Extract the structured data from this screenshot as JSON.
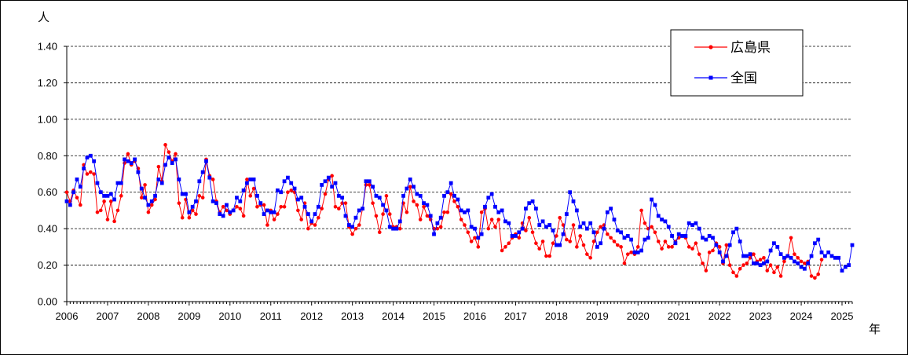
{
  "chart_data": {
    "type": "line",
    "y_unit_label": "人",
    "x_unit_label": "年",
    "ylim": [
      0,
      1.4
    ],
    "y_ticks": [
      "0.00",
      "0.20",
      "0.40",
      "0.60",
      "0.80",
      "1.00",
      "1.20",
      "1.40"
    ],
    "x_ticks": [
      "2006",
      "2007",
      "2008",
      "2009",
      "2010",
      "2011",
      "2012",
      "2013",
      "2014",
      "2015",
      "2016",
      "2017",
      "2018",
      "2019",
      "2020",
      "2021",
      "2022",
      "2023",
      "2024",
      "2025"
    ],
    "x_start": "2006-01",
    "x_end": "2025-04",
    "grid": "horizontal dashed",
    "legend_position": "top-right",
    "series": [
      {
        "name": "広島県",
        "color": "#ff0000",
        "marker": "circle",
        "values": [
          0.6,
          0.55,
          0.61,
          0.57,
          0.53,
          0.75,
          0.7,
          0.71,
          0.7,
          0.49,
          0.5,
          0.55,
          0.45,
          0.55,
          0.44,
          0.5,
          0.58,
          0.76,
          0.81,
          0.75,
          0.77,
          0.73,
          0.57,
          0.64,
          0.49,
          0.53,
          0.56,
          0.74,
          0.66,
          0.86,
          0.82,
          0.77,
          0.81,
          0.54,
          0.46,
          0.56,
          0.46,
          0.5,
          0.48,
          0.58,
          0.57,
          0.78,
          0.69,
          0.67,
          0.55,
          0.49,
          0.52,
          0.5,
          0.48,
          0.5,
          0.52,
          0.51,
          0.47,
          0.67,
          0.58,
          0.62,
          0.52,
          0.53,
          0.53,
          0.42,
          0.5,
          0.45,
          0.48,
          0.52,
          0.52,
          0.6,
          0.61,
          0.6,
          0.5,
          0.45,
          0.54,
          0.4,
          0.43,
          0.42,
          0.46,
          0.51,
          0.59,
          0.67,
          0.69,
          0.52,
          0.51,
          0.54,
          0.54,
          0.41,
          0.37,
          0.4,
          0.42,
          0.51,
          0.64,
          0.64,
          0.54,
          0.47,
          0.38,
          0.48,
          0.58,
          0.48,
          0.41,
          0.41,
          0.4,
          0.54,
          0.49,
          0.63,
          0.55,
          0.53,
          0.45,
          0.52,
          0.47,
          0.45,
          0.4,
          0.4,
          0.41,
          0.49,
          0.49,
          0.59,
          0.55,
          0.52,
          0.45,
          0.42,
          0.38,
          0.33,
          0.35,
          0.3,
          0.49,
          0.51,
          0.4,
          0.45,
          0.41,
          0.45,
          0.28,
          0.3,
          0.32,
          0.35,
          0.37,
          0.35,
          0.43,
          0.39,
          0.46,
          0.38,
          0.32,
          0.29,
          0.33,
          0.25,
          0.25,
          0.32,
          0.36,
          0.46,
          0.42,
          0.34,
          0.33,
          0.42,
          0.3,
          0.36,
          0.31,
          0.26,
          0.24,
          0.33,
          0.38,
          0.41,
          0.42,
          0.37,
          0.35,
          0.33,
          0.31,
          0.3,
          0.21,
          0.26,
          0.27,
          0.26,
          0.3,
          0.5,
          0.43,
          0.4,
          0.41,
          0.38,
          0.33,
          0.29,
          0.33,
          0.3,
          0.3,
          0.33,
          0.35,
          0.36,
          0.35,
          0.3,
          0.29,
          0.32,
          0.26,
          0.21,
          0.17,
          0.27,
          0.28,
          0.32,
          0.3,
          0.21,
          0.31,
          0.2,
          0.16,
          0.14,
          0.18,
          0.2,
          0.21,
          0.24,
          0.26,
          0.22,
          0.23,
          0.24,
          0.17,
          0.2,
          0.16,
          0.19,
          0.14,
          0.22,
          0.25,
          0.35,
          0.26,
          0.24,
          0.22,
          0.21,
          0.22,
          0.14,
          0.13,
          0.15,
          0.23
        ]
      },
      {
        "name": "全国",
        "color": "#0000ff",
        "marker": "square",
        "values": [
          0.55,
          0.53,
          0.6,
          0.67,
          0.63,
          0.73,
          0.79,
          0.8,
          0.77,
          0.65,
          0.6,
          0.58,
          0.58,
          0.59,
          0.56,
          0.65,
          0.65,
          0.78,
          0.77,
          0.76,
          0.78,
          0.71,
          0.62,
          0.57,
          0.53,
          0.55,
          0.58,
          0.67,
          0.65,
          0.75,
          0.79,
          0.76,
          0.78,
          0.67,
          0.59,
          0.59,
          0.49,
          0.52,
          0.55,
          0.66,
          0.71,
          0.77,
          0.68,
          0.55,
          0.54,
          0.48,
          0.47,
          0.53,
          0.49,
          0.5,
          0.57,
          0.55,
          0.61,
          0.65,
          0.67,
          0.67,
          0.58,
          0.54,
          0.48,
          0.5,
          0.49,
          0.49,
          0.61,
          0.6,
          0.66,
          0.68,
          0.65,
          0.62,
          0.56,
          0.57,
          0.52,
          0.48,
          0.44,
          0.48,
          0.52,
          0.64,
          0.66,
          0.68,
          0.63,
          0.65,
          0.58,
          0.57,
          0.47,
          0.42,
          0.41,
          0.46,
          0.5,
          0.51,
          0.66,
          0.66,
          0.63,
          0.58,
          0.57,
          0.53,
          0.5,
          0.41,
          0.4,
          0.4,
          0.44,
          0.58,
          0.62,
          0.67,
          0.63,
          0.59,
          0.58,
          0.54,
          0.53,
          0.47,
          0.37,
          0.43,
          0.46,
          0.58,
          0.6,
          0.65,
          0.58,
          0.56,
          0.5,
          0.49,
          0.5,
          0.41,
          0.4,
          0.35,
          0.37,
          0.52,
          0.57,
          0.59,
          0.52,
          0.49,
          0.5,
          0.44,
          0.43,
          0.36,
          0.36,
          0.38,
          0.4,
          0.51,
          0.54,
          0.55,
          0.51,
          0.42,
          0.44,
          0.41,
          0.42,
          0.39,
          0.31,
          0.31,
          0.37,
          0.48,
          0.6,
          0.55,
          0.5,
          0.41,
          0.43,
          0.4,
          0.43,
          0.38,
          0.3,
          0.32,
          0.4,
          0.49,
          0.51,
          0.45,
          0.39,
          0.38,
          0.35,
          0.36,
          0.34,
          0.27,
          0.27,
          0.28,
          0.34,
          0.35,
          0.56,
          0.53,
          0.47,
          0.45,
          0.44,
          0.41,
          0.36,
          0.32,
          0.37,
          0.36,
          0.36,
          0.43,
          0.42,
          0.43,
          0.4,
          0.35,
          0.34,
          0.36,
          0.35,
          0.31,
          0.27,
          0.22,
          0.25,
          0.31,
          0.38,
          0.4,
          0.33,
          0.25,
          0.25,
          0.26,
          0.21,
          0.21,
          0.2,
          0.21,
          0.22,
          0.28,
          0.32,
          0.3,
          0.26,
          0.24,
          0.25,
          0.24,
          0.22,
          0.21,
          0.19,
          0.18,
          0.21,
          0.25,
          0.32,
          0.34,
          0.27,
          0.25,
          0.27,
          0.25,
          0.24,
          0.24,
          0.17,
          0.19,
          0.2,
          0.31
        ]
      }
    ]
  }
}
